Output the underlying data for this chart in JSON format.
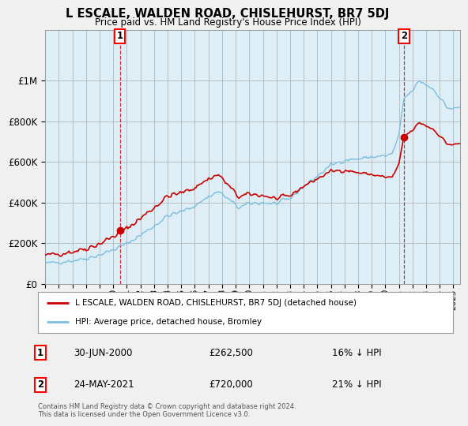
{
  "title": "L ESCALE, WALDEN ROAD, CHISLEHURST, BR7 5DJ",
  "subtitle": "Price paid vs. HM Land Registry's House Price Index (HPI)",
  "legend_entry1": "L ESCALE, WALDEN ROAD, CHISLEHURST, BR7 5DJ (detached house)",
  "legend_entry2": "HPI: Average price, detached house, Bromley",
  "annotation1_label": "1",
  "annotation1_date": "30-JUN-2000",
  "annotation1_price": 262500,
  "annotation1_text": "16% ↓ HPI",
  "annotation2_label": "2",
  "annotation2_date": "24-MAY-2021",
  "annotation2_price": 720000,
  "annotation2_text": "21% ↓ HPI",
  "footer": "Contains HM Land Registry data © Crown copyright and database right 2024.\nThis data is licensed under the Open Government Licence v3.0.",
  "hpi_color": "#7bbfdd",
  "price_color": "#cc0000",
  "background_color": "#f0f0f0",
  "plot_bg_color": "#ddeef7",
  "ylim": [
    0,
    1250000
  ],
  "yticks": [
    0,
    200000,
    400000,
    600000,
    800000,
    1000000
  ],
  "sale1_date": 2000.5,
  "sale1_price": 262500,
  "sale2_date": 2021.37,
  "sale2_price": 720000,
  "xlim_left": 1995.0,
  "xlim_right": 2025.5,
  "xticks": [
    1995,
    1996,
    1997,
    1998,
    1999,
    2000,
    2001,
    2002,
    2003,
    2004,
    2005,
    2006,
    2007,
    2008,
    2009,
    2010,
    2011,
    2012,
    2013,
    2014,
    2015,
    2016,
    2017,
    2018,
    2019,
    2020,
    2021,
    2022,
    2023,
    2024,
    2025
  ]
}
